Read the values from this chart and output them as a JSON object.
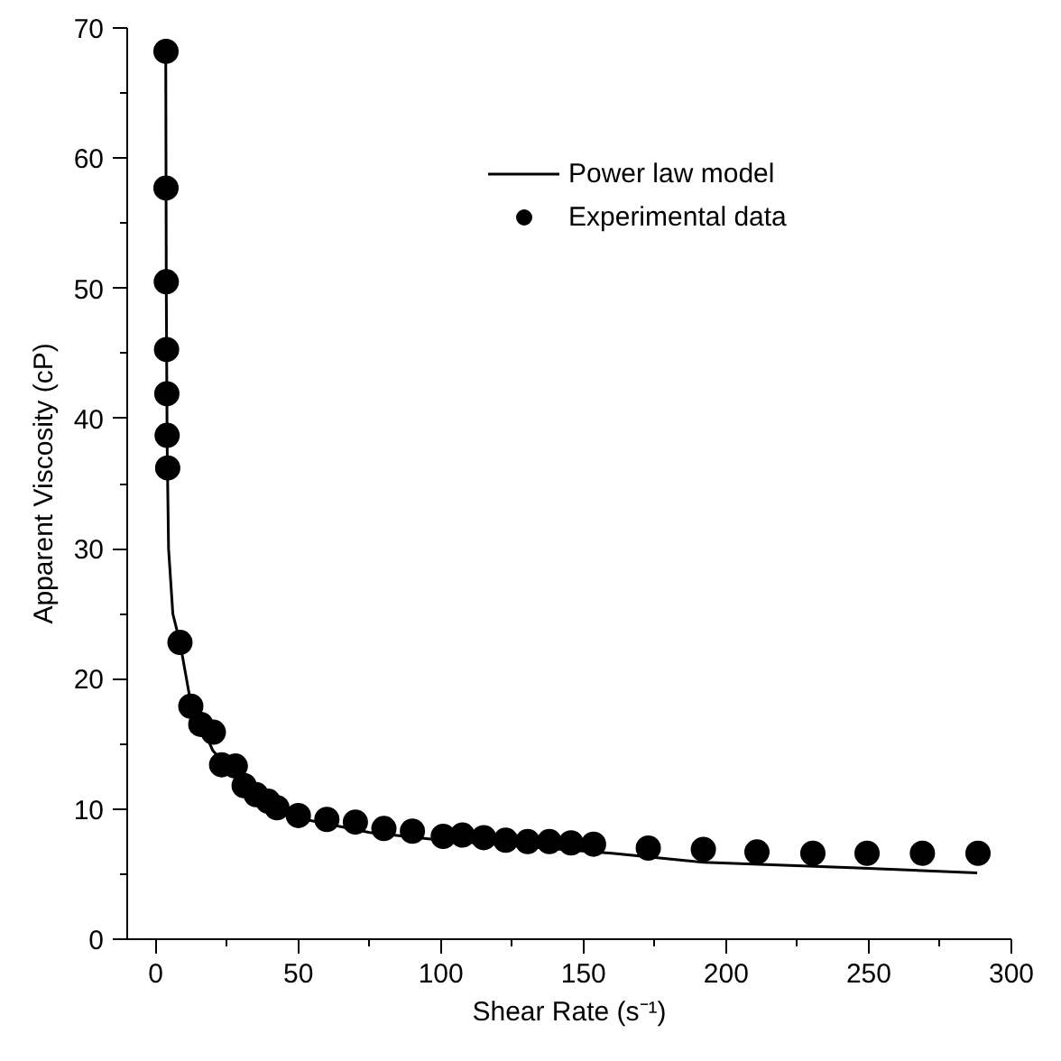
{
  "chart_data": {
    "type": "scatter",
    "xlabel": "Shear Rate (s⁻¹)",
    "ylabel": "Apparent Viscosity (cP)",
    "xlim": [
      -10,
      300
    ],
    "ylim": [
      0,
      70
    ],
    "xticks": [
      0,
      {
        "value": 25,
        "label": null
      },
      50,
      {
        "value": 75,
        "label": null
      },
      100,
      {
        "value": 125,
        "label": null
      },
      150,
      {
        "value": 175,
        "label": null
      },
      200,
      {
        "value": 225,
        "label": null
      },
      250,
      {
        "value": 275,
        "label": null
      },
      300
    ],
    "yticks": [
      0,
      {
        "value": 5,
        "label": null
      },
      10,
      {
        "value": 15,
        "label": null
      },
      20,
      {
        "value": 25,
        "label": null
      },
      30,
      {
        "value": 35,
        "label": null
      },
      40,
      {
        "value": 45,
        "label": null
      },
      50,
      {
        "value": 55,
        "label": null
      },
      60,
      {
        "value": 65,
        "label": null
      },
      70
    ],
    "grid": false,
    "legend": "top right",
    "series": [
      {
        "name": "Power law model",
        "type": "line",
        "color": "#000000",
        "marker": "none",
        "line_style": "solid",
        "x": [
          3.5,
          3.7,
          4,
          4.5,
          6,
          8.5,
          12,
          20,
          30,
          50,
          75,
          100,
          160,
          192,
          244,
          288
        ],
        "values": [
          69,
          50,
          38,
          30,
          25,
          22.8,
          18.5,
          14.5,
          12,
          9.3,
          8.2,
          7.6,
          6.6,
          5.9,
          5.5,
          5.1
        ]
      },
      {
        "name": "Experimental data",
        "color": "#000000",
        "marker": "circle",
        "x": [
          3.6,
          3.6,
          3.7,
          3.8,
          3.9,
          4.0,
          4.2,
          8.5,
          12.3,
          15.8,
          20.2,
          23.1,
          27.9,
          31,
          35.2,
          39.4,
          42.5,
          50,
          60,
          70,
          80,
          90,
          100.8,
          107.5,
          115,
          122.7,
          130.4,
          138,
          145.6,
          153.5,
          172.7,
          192,
          210.8,
          230.4,
          249.4,
          268.8,
          288.3
        ],
        "values": [
          68.2,
          57.7,
          50.5,
          45.3,
          41.9,
          38.7,
          36.2,
          22.8,
          17.9,
          16.5,
          15.9,
          13.4,
          13.3,
          11.8,
          11.1,
          10.6,
          10.1,
          9.5,
          9.2,
          9.0,
          8.5,
          8.3,
          7.9,
          8.0,
          7.8,
          7.6,
          7.5,
          7.5,
          7.4,
          7.3,
          7.0,
          6.9,
          6.7,
          6.6,
          6.6,
          6.6,
          6.6
        ]
      }
    ]
  }
}
